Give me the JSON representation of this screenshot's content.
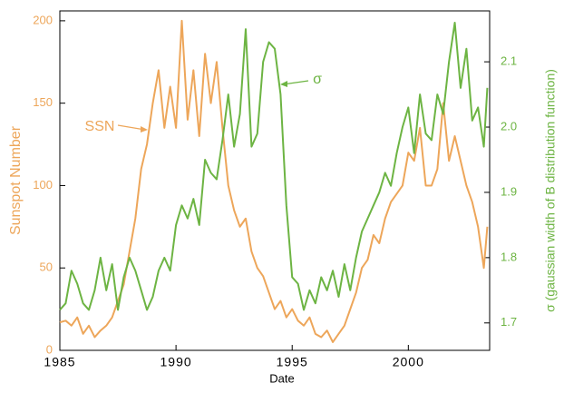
{
  "chart_data": {
    "type": "line",
    "x_label": "Date",
    "y_label": "Sunspot Number",
    "y2_label": "σ (gaussian width of B distribution function)",
    "annotations": [
      "SSN",
      "σ"
    ],
    "x": [
      1985,
      1985.25,
      1985.5,
      1985.75,
      1986,
      1986.25,
      1986.5,
      1986.75,
      1987,
      1987.25,
      1987.5,
      1987.75,
      1988,
      1988.25,
      1988.5,
      1988.75,
      1989,
      1989.25,
      1989.5,
      1989.75,
      1990,
      1990.25,
      1990.5,
      1990.75,
      1991,
      1991.25,
      1991.5,
      1991.75,
      1992,
      1992.25,
      1992.5,
      1992.75,
      1993,
      1993.25,
      1993.5,
      1993.75,
      1994,
      1994.25,
      1994.5,
      1994.75,
      1995,
      1995.25,
      1995.5,
      1995.75,
      1996,
      1996.25,
      1996.5,
      1996.75,
      1997,
      1997.25,
      1997.5,
      1997.75,
      1998,
      1998.25,
      1998.5,
      1998.75,
      1999,
      1999.25,
      1999.5,
      1999.75,
      2000,
      2000.25,
      2000.5,
      2000.75,
      2001,
      2001.25,
      2001.5,
      2001.75,
      2002,
      2002.25,
      2002.5,
      2002.75,
      2003,
      2003.25,
      2003.4
    ],
    "series": [
      {
        "name": "SSN",
        "color": "#eda65a",
        "axis": "y",
        "values": [
          17,
          18,
          15,
          20,
          10,
          15,
          8,
          12,
          15,
          20,
          30,
          40,
          60,
          80,
          110,
          125,
          150,
          170,
          135,
          160,
          135,
          200,
          140,
          170,
          130,
          180,
          150,
          175,
          135,
          100,
          85,
          75,
          80,
          60,
          50,
          45,
          35,
          25,
          30,
          20,
          25,
          18,
          15,
          20,
          10,
          8,
          12,
          5,
          10,
          15,
          25,
          35,
          50,
          55,
          70,
          65,
          80,
          90,
          95,
          100,
          120,
          115,
          135,
          100,
          100,
          110,
          150,
          115,
          130,
          115,
          100,
          90,
          75,
          50,
          75
        ]
      },
      {
        "name": "σ",
        "color": "#6db443",
        "axis": "y2",
        "values": [
          1.72,
          1.73,
          1.78,
          1.76,
          1.73,
          1.72,
          1.75,
          1.8,
          1.75,
          1.79,
          1.72,
          1.77,
          1.8,
          1.78,
          1.75,
          1.72,
          1.74,
          1.78,
          1.8,
          1.78,
          1.85,
          1.88,
          1.86,
          1.89,
          1.85,
          1.95,
          1.93,
          1.92,
          1.98,
          2.05,
          1.97,
          2.02,
          2.15,
          1.97,
          1.99,
          2.1,
          2.13,
          2.12,
          2.05,
          1.88,
          1.77,
          1.76,
          1.72,
          1.75,
          1.73,
          1.77,
          1.75,
          1.78,
          1.74,
          1.79,
          1.75,
          1.8,
          1.84,
          1.86,
          1.88,
          1.9,
          1.93,
          1.91,
          1.96,
          2,
          2.03,
          1.96,
          2.05,
          1.99,
          1.98,
          2.05,
          2.02,
          2.1,
          2.16,
          2.06,
          2.12,
          2.01,
          2.03,
          1.97,
          2.06
        ]
      }
    ],
    "xlim": [
      1985,
      2003.5
    ],
    "xticks": [
      1985,
      1990,
      1995,
      2000
    ],
    "ylim": [
      0,
      206
    ],
    "yticks": [
      0,
      50,
      100,
      150,
      200
    ],
    "y2lim": [
      1.658,
      2.178
    ],
    "y2ticks": [
      1.7,
      1.8,
      1.9,
      {
        "value": 2,
        "label": "2.0"
      },
      2.1
    ]
  }
}
